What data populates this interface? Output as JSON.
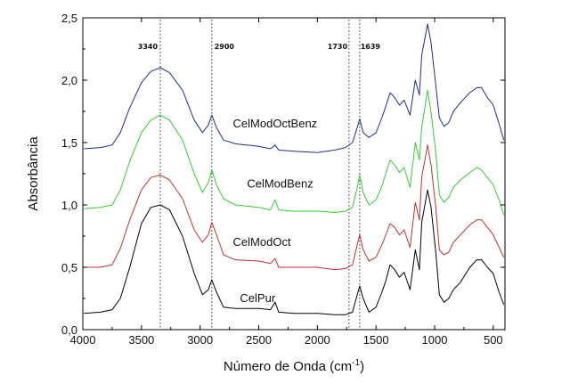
{
  "chart_data": {
    "type": "line",
    "xlabel": "Número de Onda (cm",
    "xlabel_sup": "-1",
    "xlabel_end": ")",
    "ylabel": "Absorbância",
    "xlim": [
      4000,
      400
    ],
    "ylim": [
      0,
      2.5
    ],
    "x_reversed": true,
    "x_ticks": [
      {
        "value": 4000,
        "label": "4000"
      },
      {
        "value": 3500,
        "label": "3500"
      },
      {
        "value": 3000,
        "label": "3000"
      },
      {
        "value": 2500,
        "label": "2500"
      },
      {
        "value": 2000,
        "label": "2000"
      },
      {
        "value": 1500,
        "label": "1500"
      },
      {
        "value": 1000,
        "label": "1000"
      },
      {
        "value": 500,
        "label": "500"
      }
    ],
    "y_ticks": [
      {
        "value": 0.0,
        "label": "0,0"
      },
      {
        "value": 0.5,
        "label": "0,5"
      },
      {
        "value": 1.0,
        "label": "1,0"
      },
      {
        "value": 1.5,
        "label": "1,5"
      },
      {
        "value": 2.0,
        "label": "2,0"
      },
      {
        "value": 2.5,
        "label": "2,5"
      }
    ],
    "annotations": [
      {
        "x": 3340,
        "label": "3340"
      },
      {
        "x": 2900,
        "label": "2900"
      },
      {
        "x": 1730,
        "label": "1730"
      },
      {
        "x": 1639,
        "label": "1639"
      }
    ],
    "series": [
      {
        "name": "CelPur",
        "color": "#000000",
        "label_at": {
          "x": 2660,
          "y": 0.22
        },
        "points": [
          [
            3990,
            0.13
          ],
          [
            3850,
            0.14
          ],
          [
            3750,
            0.16
          ],
          [
            3680,
            0.25
          ],
          [
            3600,
            0.5
          ],
          [
            3500,
            0.85
          ],
          [
            3420,
            0.98
          ],
          [
            3340,
            1.0
          ],
          [
            3260,
            0.96
          ],
          [
            3150,
            0.75
          ],
          [
            3050,
            0.45
          ],
          [
            2980,
            0.28
          ],
          [
            2930,
            0.32
          ],
          [
            2900,
            0.4
          ],
          [
            2860,
            0.3
          ],
          [
            2800,
            0.18
          ],
          [
            2700,
            0.17
          ],
          [
            2500,
            0.17
          ],
          [
            2400,
            0.16
          ],
          [
            2360,
            0.22
          ],
          [
            2330,
            0.14
          ],
          [
            2200,
            0.13
          ],
          [
            2000,
            0.13
          ],
          [
            1850,
            0.12
          ],
          [
            1760,
            0.12
          ],
          [
            1700,
            0.14
          ],
          [
            1660,
            0.28
          ],
          [
            1639,
            0.35
          ],
          [
            1610,
            0.25
          ],
          [
            1560,
            0.14
          ],
          [
            1500,
            0.18
          ],
          [
            1450,
            0.3
          ],
          [
            1420,
            0.38
          ],
          [
            1380,
            0.52
          ],
          [
            1340,
            0.48
          ],
          [
            1300,
            0.42
          ],
          [
            1260,
            0.46
          ],
          [
            1210,
            0.32
          ],
          [
            1165,
            0.64
          ],
          [
            1130,
            0.48
          ],
          [
            1110,
            0.86
          ],
          [
            1060,
            1.12
          ],
          [
            1030,
            0.98
          ],
          [
            990,
            0.62
          ],
          [
            960,
            0.28
          ],
          [
            920,
            0.22
          ],
          [
            880,
            0.25
          ],
          [
            840,
            0.32
          ],
          [
            780,
            0.38
          ],
          [
            700,
            0.5
          ],
          [
            640,
            0.56
          ],
          [
            600,
            0.56
          ],
          [
            550,
            0.5
          ],
          [
            500,
            0.45
          ],
          [
            450,
            0.3
          ],
          [
            410,
            0.2
          ]
        ]
      },
      {
        "name": "CelModOct",
        "color": "#c03030",
        "label_at": {
          "x": 2720,
          "y": 0.67
        },
        "points": [
          [
            3990,
            0.5
          ],
          [
            3850,
            0.5
          ],
          [
            3750,
            0.52
          ],
          [
            3680,
            0.65
          ],
          [
            3600,
            0.88
          ],
          [
            3500,
            1.12
          ],
          [
            3420,
            1.22
          ],
          [
            3340,
            1.24
          ],
          [
            3260,
            1.2
          ],
          [
            3150,
            1.05
          ],
          [
            3050,
            0.8
          ],
          [
            2980,
            0.7
          ],
          [
            2930,
            0.76
          ],
          [
            2900,
            0.86
          ],
          [
            2860,
            0.76
          ],
          [
            2800,
            0.6
          ],
          [
            2700,
            0.56
          ],
          [
            2500,
            0.55
          ],
          [
            2400,
            0.53
          ],
          [
            2360,
            0.57
          ],
          [
            2330,
            0.5
          ],
          [
            2200,
            0.5
          ],
          [
            2000,
            0.5
          ],
          [
            1850,
            0.48
          ],
          [
            1760,
            0.49
          ],
          [
            1700,
            0.52
          ],
          [
            1660,
            0.68
          ],
          [
            1639,
            0.76
          ],
          [
            1610,
            0.64
          ],
          [
            1560,
            0.55
          ],
          [
            1500,
            0.58
          ],
          [
            1450,
            0.68
          ],
          [
            1420,
            0.75
          ],
          [
            1380,
            0.85
          ],
          [
            1340,
            0.82
          ],
          [
            1300,
            0.76
          ],
          [
            1260,
            0.8
          ],
          [
            1210,
            0.66
          ],
          [
            1165,
            1.02
          ],
          [
            1130,
            0.88
          ],
          [
            1110,
            1.22
          ],
          [
            1060,
            1.48
          ],
          [
            1030,
            1.32
          ],
          [
            990,
            0.98
          ],
          [
            960,
            0.64
          ],
          [
            920,
            0.6
          ],
          [
            880,
            0.62
          ],
          [
            840,
            0.7
          ],
          [
            780,
            0.76
          ],
          [
            700,
            0.84
          ],
          [
            640,
            0.88
          ],
          [
            600,
            0.88
          ],
          [
            550,
            0.82
          ],
          [
            500,
            0.76
          ],
          [
            450,
            0.66
          ],
          [
            410,
            0.58
          ]
        ]
      },
      {
        "name": "CelModBenz",
        "color": "#33cc33",
        "label_at": {
          "x": 2600,
          "y": 1.14
        },
        "points": [
          [
            3990,
            0.97
          ],
          [
            3850,
            0.98
          ],
          [
            3750,
            1.0
          ],
          [
            3680,
            1.12
          ],
          [
            3600,
            1.35
          ],
          [
            3500,
            1.58
          ],
          [
            3420,
            1.68
          ],
          [
            3340,
            1.72
          ],
          [
            3260,
            1.68
          ],
          [
            3150,
            1.52
          ],
          [
            3050,
            1.25
          ],
          [
            2980,
            1.1
          ],
          [
            2930,
            1.18
          ],
          [
            2900,
            1.28
          ],
          [
            2860,
            1.16
          ],
          [
            2800,
            1.05
          ],
          [
            2700,
            1.0
          ],
          [
            2500,
            0.98
          ],
          [
            2400,
            0.96
          ],
          [
            2360,
            1.04
          ],
          [
            2330,
            0.96
          ],
          [
            2200,
            0.95
          ],
          [
            2000,
            0.95
          ],
          [
            1850,
            0.94
          ],
          [
            1760,
            0.95
          ],
          [
            1700,
            0.98
          ],
          [
            1660,
            1.14
          ],
          [
            1639,
            1.24
          ],
          [
            1610,
            1.1
          ],
          [
            1560,
            1.0
          ],
          [
            1500,
            1.04
          ],
          [
            1450,
            1.15
          ],
          [
            1420,
            1.24
          ],
          [
            1380,
            1.36
          ],
          [
            1340,
            1.32
          ],
          [
            1300,
            1.26
          ],
          [
            1260,
            1.3
          ],
          [
            1210,
            1.14
          ],
          [
            1165,
            1.5
          ],
          [
            1130,
            1.36
          ],
          [
            1110,
            1.62
          ],
          [
            1060,
            1.92
          ],
          [
            1030,
            1.74
          ],
          [
            990,
            1.42
          ],
          [
            960,
            1.08
          ],
          [
            920,
            1.02
          ],
          [
            880,
            1.06
          ],
          [
            840,
            1.14
          ],
          [
            780,
            1.2
          ],
          [
            700,
            1.26
          ],
          [
            640,
            1.3
          ],
          [
            600,
            1.28
          ],
          [
            550,
            1.22
          ],
          [
            500,
            1.16
          ],
          [
            450,
            1.04
          ],
          [
            410,
            0.92
          ]
        ]
      },
      {
        "name": "CelModOctBenz",
        "color": "#1e2d8f",
        "label_at": {
          "x": 2720,
          "y": 1.62
        },
        "points": [
          [
            3990,
            1.45
          ],
          [
            3850,
            1.46
          ],
          [
            3750,
            1.48
          ],
          [
            3680,
            1.58
          ],
          [
            3600,
            1.78
          ],
          [
            3500,
            1.98
          ],
          [
            3420,
            2.07
          ],
          [
            3340,
            2.1
          ],
          [
            3260,
            2.06
          ],
          [
            3150,
            1.92
          ],
          [
            3050,
            1.68
          ],
          [
            2980,
            1.58
          ],
          [
            2930,
            1.64
          ],
          [
            2900,
            1.72
          ],
          [
            2860,
            1.62
          ],
          [
            2800,
            1.52
          ],
          [
            2700,
            1.49
          ],
          [
            2500,
            1.47
          ],
          [
            2400,
            1.45
          ],
          [
            2360,
            1.48
          ],
          [
            2330,
            1.44
          ],
          [
            2200,
            1.43
          ],
          [
            2000,
            1.42
          ],
          [
            1850,
            1.44
          ],
          [
            1760,
            1.46
          ],
          [
            1700,
            1.5
          ],
          [
            1660,
            1.62
          ],
          [
            1639,
            1.69
          ],
          [
            1610,
            1.58
          ],
          [
            1560,
            1.54
          ],
          [
            1500,
            1.58
          ],
          [
            1450,
            1.7
          ],
          [
            1420,
            1.78
          ],
          [
            1380,
            1.9
          ],
          [
            1340,
            1.86
          ],
          [
            1300,
            1.8
          ],
          [
            1260,
            1.84
          ],
          [
            1210,
            1.72
          ],
          [
            1165,
            2.0
          ],
          [
            1130,
            1.88
          ],
          [
            1110,
            2.2
          ],
          [
            1060,
            2.45
          ],
          [
            1030,
            2.3
          ],
          [
            990,
            1.96
          ],
          [
            960,
            1.7
          ],
          [
            920,
            1.63
          ],
          [
            880,
            1.66
          ],
          [
            840,
            1.75
          ],
          [
            780,
            1.82
          ],
          [
            700,
            1.9
          ],
          [
            640,
            1.94
          ],
          [
            600,
            1.94
          ],
          [
            550,
            1.86
          ],
          [
            500,
            1.8
          ],
          [
            450,
            1.65
          ],
          [
            410,
            1.52
          ]
        ]
      }
    ]
  }
}
